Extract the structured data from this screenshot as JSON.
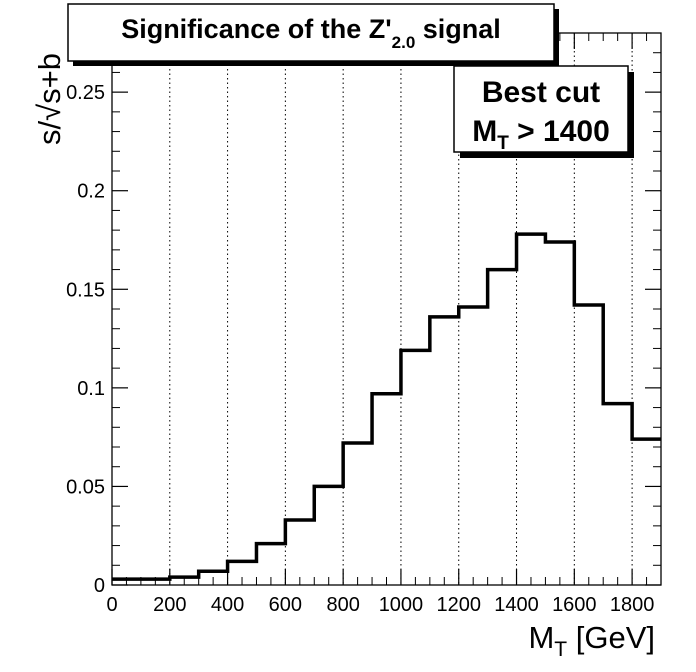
{
  "chart_data": {
    "type": "histogram",
    "title": {
      "main": "Significance of the Z'",
      "subscript": "2.0",
      "suffix": " signal"
    },
    "xlabel": {
      "main": "M",
      "subscript": "T",
      "suffix": " [GeV]"
    },
    "ylabel": "s/√s+b",
    "xlim": [
      0,
      1900
    ],
    "ylim": [
      0,
      0.28
    ],
    "x_ticks": [
      0,
      200,
      400,
      600,
      800,
      1000,
      1200,
      1400,
      1600,
      1800
    ],
    "x_tick_labels": [
      "0",
      "200",
      "400",
      "600",
      "800",
      "1000",
      "1200",
      "1400",
      "1600",
      "1800"
    ],
    "y_ticks": [
      0,
      0.05,
      0.1,
      0.15,
      0.2,
      0.25
    ],
    "y_tick_labels": [
      "0",
      "0.05",
      "0.1",
      "0.15",
      "0.2",
      "0.25"
    ],
    "grid": "vertical dotted at major x ticks",
    "bin_edges": [
      0,
      100,
      200,
      300,
      400,
      500,
      600,
      700,
      800,
      900,
      1000,
      1100,
      1200,
      1300,
      1400,
      1500,
      1600,
      1700,
      1800,
      1900
    ],
    "values": [
      0.003,
      0.003,
      0.004,
      0.007,
      0.012,
      0.021,
      0.033,
      0.05,
      0.072,
      0.097,
      0.119,
      0.136,
      0.141,
      0.16,
      0.178,
      0.174,
      0.142,
      0.092,
      0.074
    ],
    "annotation": {
      "line1": "Best cut",
      "line2_main": "M",
      "line2_subscript": "T",
      "line2_suffix": " > 1400"
    },
    "colors": {
      "line": "#000000",
      "grid": "#000000",
      "background": "#ffffff"
    }
  }
}
